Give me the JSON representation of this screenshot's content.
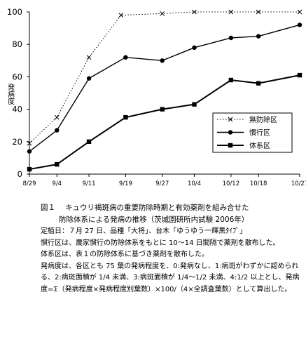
{
  "chart_data": {
    "type": "line",
    "categories": [
      "8/29",
      "9/4",
      "9/11",
      "9/19",
      "9/27",
      "10/4",
      "10/12",
      "10/18",
      "10/27"
    ],
    "x": [
      0,
      6,
      13,
      21,
      29,
      36,
      44,
      50,
      59
    ],
    "ylabel": "発病度",
    "ylim": [
      0,
      100
    ],
    "yticks": [
      0,
      20,
      40,
      60,
      80,
      100
    ],
    "grid": false,
    "legend_position": "right-lower",
    "series": [
      {
        "name": "無防除区",
        "style": "dotted-x",
        "color": "#000000",
        "x": [
          0,
          6,
          13,
          20,
          29,
          36,
          44,
          50,
          59
        ],
        "values": [
          19,
          35,
          72,
          98,
          99,
          100,
          100,
          100,
          100
        ]
      },
      {
        "name": "慣行区",
        "style": "circle",
        "color": "#000000",
        "x": [
          0,
          6,
          13,
          21,
          29,
          36,
          44,
          50,
          59
        ],
        "values": [
          14,
          27,
          59,
          72,
          70,
          78,
          84,
          85,
          92
        ]
      },
      {
        "name": "体系区",
        "style": "square",
        "color": "#000000",
        "x": [
          0,
          6,
          13,
          21,
          29,
          36,
          44,
          50,
          59
        ],
        "values": [
          3,
          6,
          20,
          35,
          40,
          43,
          58,
          56,
          61
        ]
      }
    ]
  },
  "caption": {
    "fig_label": "図１",
    "title_line1": "キュウリ褐斑病の重要防除時期と有効薬剤を組み合せた",
    "title_line2": "防除体系による発病の推移（茨城園研所内試験 2006年）",
    "notes": [
      "定植日：７月 27 日、品種「大将」、台木「ゆうゆう一輝黒ﾀｲﾌﾟ」",
      "慣行区は、農家慣行の防除体系をもとに 10～14 日間隔で薬剤を散布した。",
      "体系区は、表１の防除体系に基づき薬剤を散布した。",
      "発病度は、各区とも 75 葉の発病程度を、0:発病なし、1:病斑がわずかに認められる、2:病斑面積が 1/4 未満、3:病斑面積が 1/4～1/2 未満、4:1/2 以上とし、発病度=Σ（発病程度×発病程度別葉数）×100/（4×全調査葉数）として算出した。"
    ]
  }
}
